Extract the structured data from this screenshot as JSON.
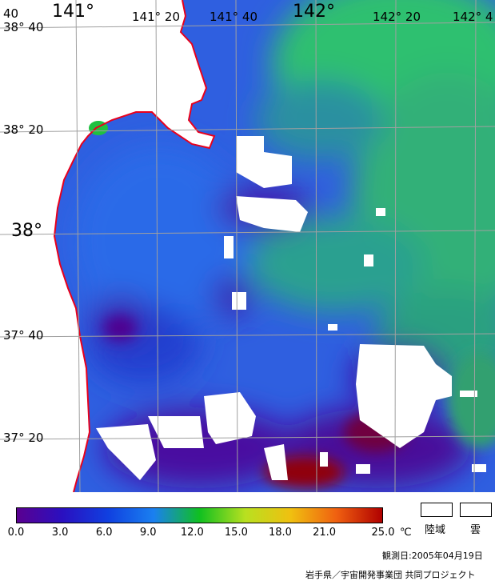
{
  "map": {
    "lon_labels": [
      {
        "text": "141°",
        "class": "lon-major"
      },
      {
        "text": "141° 20",
        "class": "lon-minor"
      },
      {
        "text": "141° 40",
        "class": "lon-minor"
      },
      {
        "text": "142°",
        "class": "lon-major"
      },
      {
        "text": "142° 20",
        "class": "lon-minor"
      },
      {
        "text": "142° 4",
        "class": "lon-minor"
      }
    ],
    "lat_labels": [
      {
        "text": "38° 40",
        "class": "lat-minor"
      },
      {
        "text": "38° 20",
        "class": "lat-minor"
      },
      {
        "text": "38°",
        "class": "lat-major"
      },
      {
        "text": "37° 40",
        "class": "lat-minor"
      },
      {
        "text": "37° 20",
        "class": "lat-minor"
      }
    ],
    "corner_label": "40",
    "colors": {
      "ocean_base": "#2f5fe0",
      "coast": "#e8001c",
      "grid": "#9a9a9a",
      "land": "#ffffff",
      "cloud": "#ffffff"
    }
  },
  "colorbar": {
    "ticks": [
      "0.0",
      "3.0",
      "6.0",
      "9.0",
      "12.0",
      "15.0",
      "18.0",
      "21.0",
      "25.0"
    ],
    "unit": "℃",
    "colors": [
      "#5a0090",
      "#2a10c0",
      "#1040e0",
      "#1a80f0",
      "#10c020",
      "#b8e020",
      "#f0c010",
      "#f06010",
      "#b00000"
    ]
  },
  "legend": {
    "land": "陸域",
    "cloud": "雲"
  },
  "footer": {
    "observation_date": "観測日:2005年04月19日",
    "credit": "岩手県／宇宙開発事業団 共同プロジェクト"
  }
}
